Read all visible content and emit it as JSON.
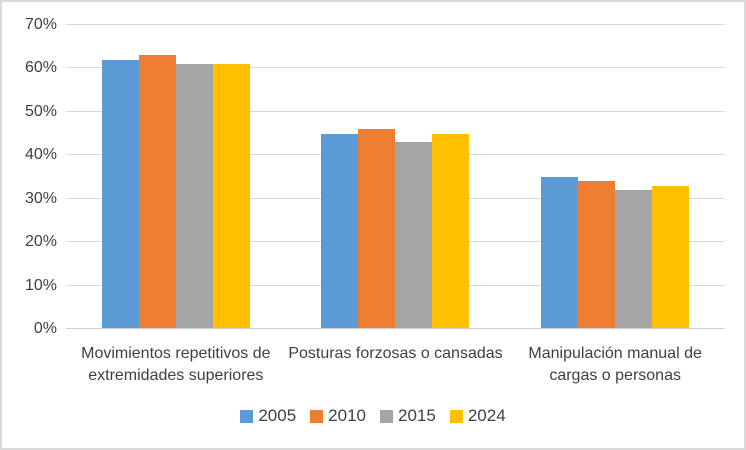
{
  "chart_data": {
    "type": "bar",
    "title": "",
    "xlabel": "",
    "ylabel": "",
    "categories": [
      "Movimientos repetitivos de extremidades superiores",
      "Posturas forzosas o cansadas",
      "Manipulación manual de cargas o personas"
    ],
    "category_label_lines": [
      [
        "Movimientos repetitivos de",
        "extremidades superiores"
      ],
      [
        "Posturas forzosas o cansadas"
      ],
      [
        "Manipulación manual de",
        "cargas o personas"
      ]
    ],
    "series": [
      {
        "name": "2005",
        "color": "#5B9BD5",
        "values": [
          62,
          45,
          35
        ]
      },
      {
        "name": "2010",
        "color": "#ED7D31",
        "values": [
          63,
          46,
          34
        ]
      },
      {
        "name": "2015",
        "color": "#A5A5A5",
        "values": [
          61,
          43,
          32
        ]
      },
      {
        "name": "2024",
        "color": "#FFC000",
        "values": [
          61,
          45,
          33
        ]
      }
    ],
    "ylim": [
      0,
      70
    ],
    "ytick_step": 10,
    "yticks": [
      "0%",
      "10%",
      "20%",
      "30%",
      "40%",
      "50%",
      "60%",
      "70%"
    ],
    "grid": true,
    "legend_position": "bottom"
  },
  "style": {
    "gridline_color": "#D9D9D9",
    "axis_line_color": "#CFCFCF",
    "text_color": "#404040",
    "background": "#FFFFFF",
    "border_color": "#D9D9D9"
  }
}
